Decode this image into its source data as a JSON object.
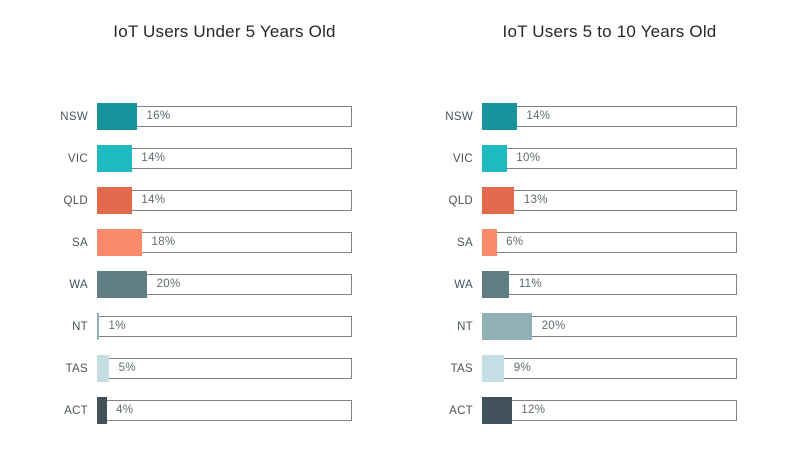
{
  "page": {
    "background": "#ffffff",
    "outline_color": "#828282",
    "text_colors": {
      "title": "#24282b",
      "category": "#4a5459",
      "value": "#5f6b70"
    }
  },
  "chart_data": [
    {
      "type": "bar",
      "orientation": "horizontal",
      "title": "IoT Users Under 5 Years Old",
      "categories": [
        "NSW",
        "VIC",
        "QLD",
        "SA",
        "WA",
        "NT",
        "TAS",
        "ACT"
      ],
      "values": [
        16,
        14,
        14,
        18,
        20,
        1,
        5,
        4
      ],
      "value_labels": [
        "16%",
        "14%",
        "14%",
        "18%",
        "20%",
        "1%",
        "5%",
        "4%"
      ],
      "xlim": [
        0,
        100
      ],
      "bar_colors": [
        "#19939b",
        "#1ebabf",
        "#e3694c",
        "#f98a6b",
        "#607d83",
        "#92b1b7",
        "#c5dee3",
        "#41525a"
      ],
      "grid": false,
      "legend": "none"
    },
    {
      "type": "bar",
      "orientation": "horizontal",
      "title": "IoT Users 5 to 10 Years Old",
      "categories": [
        "NSW",
        "VIC",
        "QLD",
        "SA",
        "WA",
        "NT",
        "TAS",
        "ACT"
      ],
      "values": [
        14,
        10,
        13,
        6,
        11,
        20,
        9,
        12
      ],
      "value_labels": [
        "14%",
        "10%",
        "13%",
        "6%",
        "11%",
        "20%",
        "9%",
        "12%"
      ],
      "xlim": [
        0,
        100
      ],
      "bar_colors": [
        "#19939b",
        "#1ebabf",
        "#e3694c",
        "#f98a6b",
        "#607d83",
        "#92b1b7",
        "#c5dee3",
        "#41525a"
      ],
      "grid": false,
      "legend": "none"
    }
  ]
}
